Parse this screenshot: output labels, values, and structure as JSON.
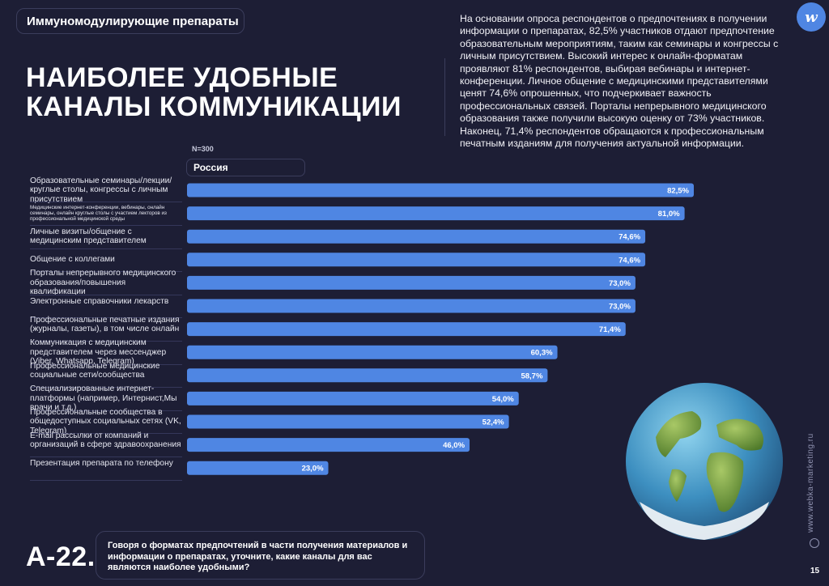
{
  "section": "Иммуномодулирующие препараты",
  "headline": [
    "НАИБОЛЕЕ УДОБНЫЕ",
    "КАНАЛЫ КОММУНИКАЦИИ"
  ],
  "summary": "На основании опроса респондентов о предпочтениях в получении информации о препаратах, 82,5% участников отдают предпочтение образовательным мероприятиям, таким как семинары и конгрессы с личным присутствием. Высокий интерес к онлайн-форматам проявляют 81% респондентов, выбирая вебинары и интернет-конференции. Личное общение с медицинскими представителями ценят 74,6% опрошенных, что подчеркивает важность профессиональных связей. Порталы непрерывного медицинского образования также получили высокую оценку от 73% участников. Наконец, 71,4% респондентов обращаются к профессиональным печатным изданиям для получения актуальной информации.",
  "logo_text": "w",
  "sample_label": "N=300",
  "country_label": "Россия",
  "chart_data": {
    "type": "bar",
    "orientation": "horizontal",
    "series": [
      {
        "name": "Россия",
        "values": [
          82.5,
          81.0,
          74.6,
          74.6,
          73.0,
          73.0,
          71.4,
          60.3,
          58.7,
          54.0,
          52.4,
          46.0,
          23.0
        ]
      }
    ],
    "categories": [
      "Образовательные семинары/лекции/ круглые столы, конгрессы с личным присутствием",
      "Медицинские интернет-конференции, вебинары, онлайн семинары, онлайн круглые столы с участием лекторов из профессиональной медицинской среды",
      "Личные визиты/общение с медицинским представителем",
      "Общение с коллегами",
      "Порталы непрерывного медицинского образования/повышения квалификации",
      "Электронные справочники лекарств",
      "Профессиональные печатные издания (журналы, газеты), в том числе онлайн",
      "Коммуникация с медицинским представителем через мессенджер (Viber, Whatsapp, Telegram)",
      "Профессиональные медицинские социальные сети/сообщества",
      "Специализированные интернет-платформы (например, Интернист,Мы врачи и т.д.)",
      "Профессиональные сообщества в общедоступных социальных сетях (VK, Telegram)",
      "E-mail рассылки от компаний и организаций в сфере здравоохранения",
      "Презентация препарата по телефону"
    ],
    "value_labels": [
      "82,5%",
      "81,0%",
      "74,6%",
      "74,6%",
      "73,0%",
      "73,0%",
      "71,4%",
      "60,3%",
      "58,7%",
      "54,0%",
      "52,4%",
      "46,0%",
      "23,0%"
    ],
    "xlim": [
      0,
      100
    ],
    "bar_color": "#4f86e3",
    "grid": false,
    "title": "",
    "xlabel": "",
    "ylabel": ""
  },
  "question_code": "А-22.",
  "question_text": "Говоря о форматах предпочтений в части получения материалов и информации о препаратах, уточните, какие каналы для вас являются наиболее удобными?",
  "site_url": "www.webka-marketing.ru",
  "page_number": "15"
}
